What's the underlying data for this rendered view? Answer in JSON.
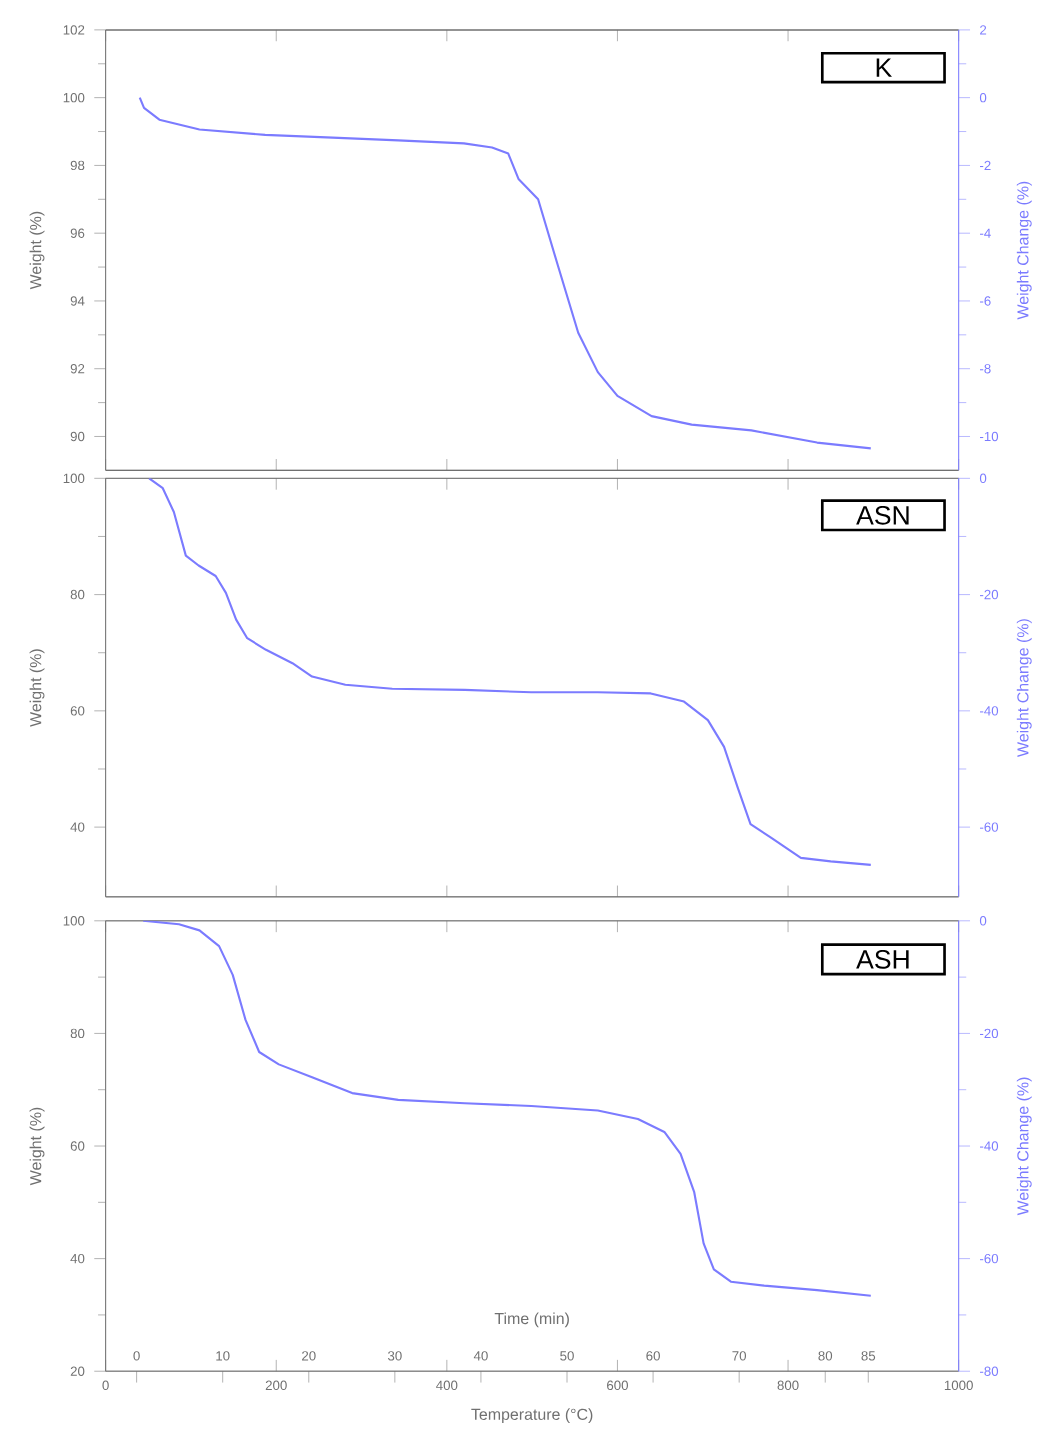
{
  "chart_data": [
    {
      "type": "line",
      "annotations": [
        "K"
      ],
      "ylabel": "Weight (%)",
      "y2label": "Weight Change (%)",
      "xlim": [
        0,
        1000
      ],
      "xticks": [
        0,
        200,
        400,
        600,
        800,
        1000
      ],
      "ylim": [
        89,
        102
      ],
      "yticks": [
        90,
        92,
        94,
        96,
        98,
        100,
        102
      ],
      "y2lim": [
        -11,
        2
      ],
      "y2ticks": [
        -10,
        -8,
        -6,
        -4,
        -2,
        0,
        2
      ],
      "tick_labels": "y",
      "series": [
        {
          "color": "#7b7bff",
          "x": [
            40,
            45,
            63,
            110,
            187,
            266,
            343,
            420,
            453,
            472,
            484,
            507,
            530,
            554,
            577,
            600,
            640,
            687,
            757,
            834,
            897
          ],
          "values": [
            100,
            99.7,
            99.35,
            99.06,
            98.9,
            98.82,
            98.74,
            98.65,
            98.53,
            98.35,
            97.6,
            97.0,
            95.06,
            93.06,
            91.9,
            91.2,
            90.6,
            90.35,
            90.18,
            89.82,
            89.65
          ]
        }
      ]
    },
    {
      "type": "line",
      "annotations": [
        "ASN"
      ],
      "ylabel": "Weight (%)",
      "y2label": "Weight Change (%)",
      "xlim": [
        0,
        1000
      ],
      "xticks": [
        0,
        200,
        400,
        600,
        800,
        1000
      ],
      "ylim": [
        28,
        100
      ],
      "yticks": [
        40,
        60,
        80,
        100
      ],
      "y2lim": [
        -72,
        0
      ],
      "y2ticks": [
        -60,
        -40,
        -20,
        0
      ],
      "tick_labels": "y",
      "series": [
        {
          "color": "#7b7bff",
          "x": [
            51,
            67,
            80,
            94,
            109,
            129,
            141,
            153,
            166,
            188,
            219,
            242,
            281,
            336,
            421,
            499,
            577,
            639,
            678,
            706,
            725,
            741,
            756,
            780,
            815,
            850,
            897
          ],
          "values": [
            100,
            98.3,
            94.2,
            86.7,
            85.0,
            83.2,
            80.3,
            75.7,
            72.5,
            70.5,
            68.2,
            65.9,
            64.5,
            63.8,
            63.6,
            63.2,
            63.2,
            63.0,
            61.6,
            58.4,
            53.8,
            46.8,
            40.5,
            38.2,
            34.7,
            34.1,
            33.5
          ]
        }
      ]
    },
    {
      "type": "line",
      "annotations": [
        "ASH"
      ],
      "ylabel": "Weight (%)",
      "y2label": "Weight Change (%)",
      "xlabel": "Temperature (°C)",
      "x2label": "Time (min)",
      "xlim": [
        0,
        1000
      ],
      "xticks": [
        0,
        200,
        400,
        600,
        800,
        1000
      ],
      "ylim": [
        20,
        100
      ],
      "yticks": [
        20,
        40,
        60,
        80,
        100
      ],
      "y2lim": [
        -80,
        0
      ],
      "y2ticks": [
        -80,
        -60,
        -40,
        -20,
        0
      ],
      "x2lim": [
        -3.6,
        95.5
      ],
      "x2ticks": [
        0,
        10,
        20,
        30,
        40,
        50,
        60,
        70,
        80,
        85
      ],
      "series": [
        {
          "color": "#7b7bff",
          "x": [
            44,
            86,
            110,
            133,
            149,
            164,
            180,
            203,
            242,
            289,
            343,
            421,
            499,
            577,
            624,
            655,
            674,
            690,
            701,
            713,
            733,
            772,
            834,
            897
          ],
          "values": [
            100,
            99.4,
            98.3,
            95.5,
            90.4,
            82.4,
            76.7,
            74.5,
            72.2,
            69.4,
            68.2,
            67.6,
            67.1,
            66.3,
            64.8,
            62.5,
            58.6,
            51.8,
            42.7,
            38.1,
            35.9,
            35.2,
            34.4,
            33.4
          ]
        }
      ]
    }
  ]
}
